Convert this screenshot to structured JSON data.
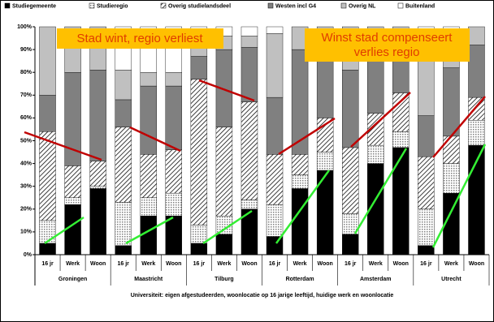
{
  "chart_data": {
    "type": "stacked-bar",
    "legend_position": "top",
    "categories": [
      "16 jr",
      "Werk",
      "Woon",
      "16 jr",
      "Werk",
      "Woon",
      "16 jr",
      "Werk",
      "Woon",
      "16 jr",
      "Werk",
      "Woon",
      "16 jr",
      "Werk",
      "Woon",
      "16 jr",
      "Werk",
      "Woon"
    ],
    "groups": [
      "Groningen",
      "Maastricht",
      "Tilburg",
      "Rotterdam",
      "Amsterdam",
      "Utrecht"
    ],
    "x_label": "Universiteit: eigen afgestudeerden, woonlocatie op 16 jarige leeftijd, huidige werk en woonlocatie",
    "ylim": [
      0,
      100
    ],
    "yticks": [
      {
        "value": 0,
        "label": "0%"
      },
      {
        "value": 10,
        "label": "10%"
      },
      {
        "value": 20,
        "label": "20%"
      },
      {
        "value": 30,
        "label": "30%"
      },
      {
        "value": 40,
        "label": "40%"
      },
      {
        "value": 50,
        "label": "50%"
      },
      {
        "value": 60,
        "label": "60%"
      },
      {
        "value": 70,
        "label": "70%"
      },
      {
        "value": 80,
        "label": "80%"
      },
      {
        "value": 90,
        "label": "90%"
      },
      {
        "value": 100,
        "label": "100%"
      }
    ],
    "series": [
      {
        "name": "Studiegemeente",
        "color": "#000000",
        "pattern": "solid",
        "values": [
          5,
          22,
          29,
          4,
          17,
          17,
          5,
          9,
          20,
          8,
          29,
          37,
          9,
          40,
          47,
          4,
          27,
          48
        ]
      },
      {
        "name": "Studieregio",
        "color": "#808080",
        "pattern": "dots",
        "values": [
          10,
          3,
          1,
          19,
          8,
          10,
          8,
          8,
          4,
          14,
          6,
          8,
          9,
          8,
          7,
          16,
          13,
          11
        ]
      },
      {
        "name": "Overig studielandsdeel",
        "color": "#000000",
        "pattern": "hatch",
        "values": [
          39,
          14,
          11,
          33,
          19,
          19,
          64,
          39,
          43,
          22,
          9,
          15,
          29,
          14,
          17,
          23,
          12,
          10
        ]
      },
      {
        "name": "Westen incl G4",
        "color": "#808080",
        "pattern": "solid",
        "values": [
          16,
          41,
          40,
          12,
          30,
          28,
          10,
          34,
          24,
          25,
          46,
          31,
          34,
          28,
          20,
          18,
          30,
          23
        ]
      },
      {
        "name": "Overig NL",
        "color": "#c0c0c0",
        "pattern": "solid",
        "values": [
          30,
          20,
          19,
          13,
          6,
          6,
          9,
          6,
          5,
          28,
          10,
          9,
          19,
          10,
          9,
          35,
          14,
          8
        ]
      },
      {
        "name": "Buitenland",
        "color": "#ffffff",
        "pattern": "solid",
        "values": [
          0,
          0,
          0,
          19,
          20,
          20,
          4,
          4,
          4,
          3,
          0,
          0,
          0,
          0,
          0,
          4,
          4,
          0
        ]
      }
    ],
    "annotations": [
      {
        "lines": [
          "Stad wint, regio verliest"
        ]
      },
      {
        "lines": [
          "Winst stad compenseert",
          "verlies regio"
        ]
      }
    ]
  }
}
